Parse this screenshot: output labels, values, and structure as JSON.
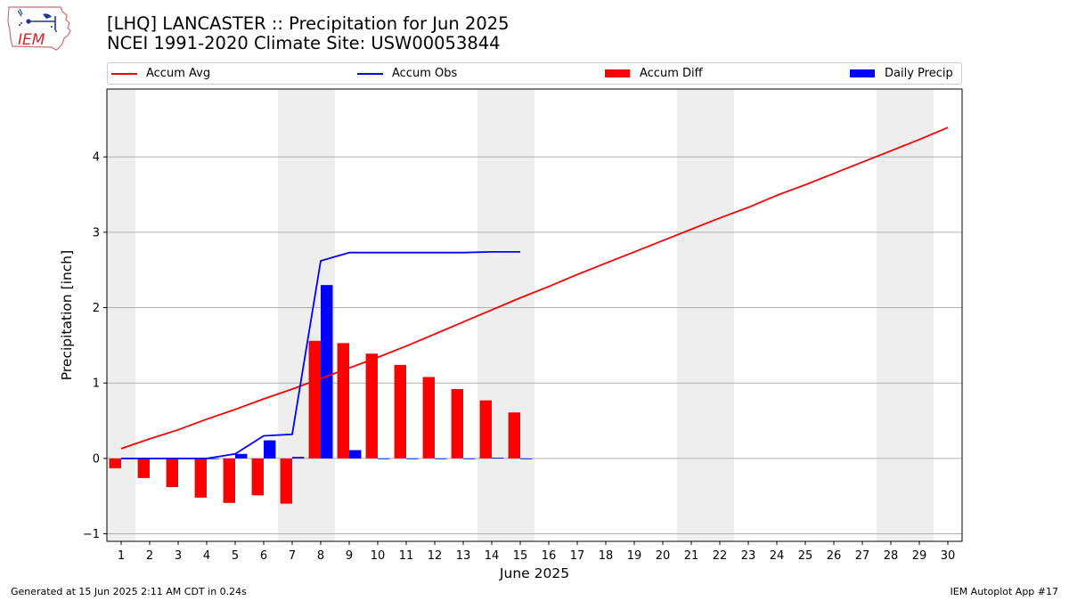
{
  "header": {
    "title_line1": "[LHQ] LANCASTER :: Precipitation for Jun 2025",
    "title_line2": "NCEI 1991-2020 Climate Site: USW00053844",
    "logo_text": "IEM"
  },
  "footer": {
    "generated": "Generated at 15 Jun 2025 2:11 AM CDT in 0.24s",
    "app": "IEM Autoplot App #17"
  },
  "legend": [
    {
      "label": "Accum Avg",
      "kind": "line",
      "color": "#ff0000"
    },
    {
      "label": "Accum Obs",
      "kind": "line",
      "color": "#0000ff"
    },
    {
      "label": "Accum Diff",
      "kind": "bar",
      "color": "#ff0000"
    },
    {
      "label": "Daily Precip",
      "kind": "bar",
      "color": "#0000ff"
    }
  ],
  "chart_data": {
    "type": "bar",
    "xlabel": "June 2025",
    "ylabel": "Precipitation [inch]",
    "xlim": [
      0.5,
      30.5
    ],
    "ylim": [
      -1.1,
      4.9
    ],
    "yticks": [
      -1,
      0,
      1,
      2,
      3,
      4
    ],
    "xticks": [
      1,
      2,
      3,
      4,
      5,
      6,
      7,
      8,
      9,
      10,
      11,
      12,
      13,
      14,
      15,
      16,
      17,
      18,
      19,
      20,
      21,
      22,
      23,
      24,
      25,
      26,
      27,
      28,
      29,
      30
    ],
    "grid": "horizontal",
    "legend_position": "top",
    "weekend_shading": [
      [
        0.5,
        1.5
      ],
      [
        6.5,
        8.5
      ],
      [
        13.5,
        15.5
      ],
      [
        20.5,
        22.5
      ],
      [
        27.5,
        29.5
      ]
    ],
    "series": [
      {
        "name": "Accum Avg",
        "kind": "line",
        "color": "#ff0000",
        "x": [
          1,
          2,
          3,
          4,
          5,
          6,
          7,
          8,
          9,
          10,
          11,
          12,
          13,
          14,
          15,
          16,
          17,
          18,
          19,
          20,
          21,
          22,
          23,
          24,
          25,
          26,
          27,
          28,
          29,
          30
        ],
        "values": [
          0.13,
          0.26,
          0.38,
          0.52,
          0.65,
          0.79,
          0.92,
          1.06,
          1.2,
          1.34,
          1.49,
          1.65,
          1.81,
          1.97,
          2.13,
          2.28,
          2.44,
          2.59,
          2.74,
          2.89,
          3.04,
          3.19,
          3.33,
          3.49,
          3.63,
          3.78,
          3.93,
          4.08,
          4.23,
          4.39
        ]
      },
      {
        "name": "Accum Obs",
        "kind": "line",
        "color": "#0000ff",
        "x": [
          1,
          2,
          3,
          4,
          5,
          6,
          7,
          8,
          9,
          10,
          11,
          12,
          13,
          14,
          15
        ],
        "values": [
          0.0,
          0.0,
          0.0,
          0.0,
          0.06,
          0.3,
          0.32,
          2.62,
          2.73,
          2.73,
          2.73,
          2.73,
          2.73,
          2.74,
          2.74
        ]
      },
      {
        "name": "Accum Diff",
        "kind": "bar",
        "color": "#ff0000",
        "x": [
          1,
          2,
          3,
          4,
          5,
          6,
          7,
          8,
          9,
          10,
          11,
          12,
          13,
          14,
          15
        ],
        "values": [
          -0.13,
          -0.26,
          -0.38,
          -0.52,
          -0.59,
          -0.49,
          -0.6,
          1.56,
          1.53,
          1.39,
          1.24,
          1.08,
          0.92,
          0.77,
          0.61
        ]
      },
      {
        "name": "Daily Precip",
        "kind": "bar",
        "color": "#0000ff",
        "x": [
          1,
          2,
          3,
          4,
          5,
          6,
          7,
          8,
          9,
          10,
          11,
          12,
          13,
          14,
          15
        ],
        "values": [
          0.0,
          0.0,
          0.0,
          0.0,
          0.06,
          0.24,
          0.02,
          2.3,
          0.11,
          0.0,
          0.0,
          0.0,
          0.0,
          0.01,
          0.0
        ]
      }
    ]
  }
}
